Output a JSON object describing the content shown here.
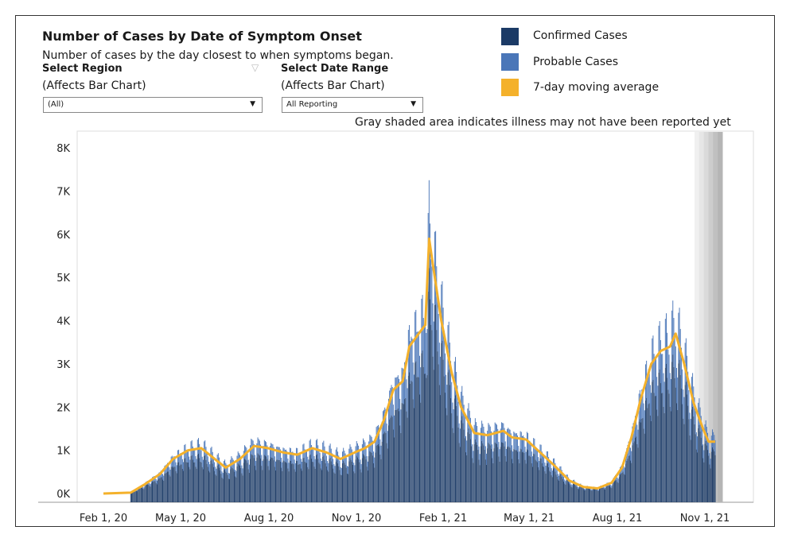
{
  "title": "Number of Cases by Date of Symptom Onset",
  "subtitle": "Number of cases by the day closest to when symptoms began.",
  "filters": {
    "region": {
      "label": "Select Region",
      "sublabel": "(Affects Bar Chart)",
      "value": "(All)"
    },
    "date_range": {
      "label": "Select Date Range",
      "sublabel": "(Affects Bar Chart)",
      "value": "All Reporting"
    }
  },
  "legend": [
    {
      "label": "Confirmed Cases",
      "color": "#1b3a66"
    },
    {
      "label": "Probable Cases",
      "color": "#4a76b8"
    },
    {
      "label": "7-day moving average",
      "color": "#f4b12b"
    }
  ],
  "note": "Gray shaded area indicates illness may not have been reported yet",
  "chart_data": {
    "type": "bar",
    "x_ticks": [
      "Feb 1, 20",
      "May 1, 20",
      "Aug 1, 20",
      "Nov 1, 20",
      "Feb 1, 21",
      "May 1, 21",
      "Aug 1, 21",
      "Nov 1, 21"
    ],
    "y_ticks": [
      "0K",
      "1K",
      "2K",
      "3K",
      "4K",
      "5K",
      "6K",
      "7K",
      "8K"
    ],
    "ylim": [
      0,
      8200
    ],
    "x_range": [
      "2020-01-15",
      "2021-11-15"
    ],
    "shaded_region_start": "2021-10-21",
    "series": [
      {
        "name": "Confirmed Cases",
        "color": "#1b3a66"
      },
      {
        "name": "Probable Cases",
        "color": "#4a76b8"
      },
      {
        "name": "7-day moving average",
        "color": "#f4b12b",
        "points": [
          [
            "2020-02-01",
            0
          ],
          [
            "2020-03-01",
            20
          ],
          [
            "2020-03-15",
            200
          ],
          [
            "2020-04-01",
            450
          ],
          [
            "2020-04-15",
            800
          ],
          [
            "2020-05-01",
            1000
          ],
          [
            "2020-05-15",
            1050
          ],
          [
            "2020-06-01",
            750
          ],
          [
            "2020-06-10",
            600
          ],
          [
            "2020-06-25",
            800
          ],
          [
            "2020-07-10",
            1100
          ],
          [
            "2020-07-25",
            1050
          ],
          [
            "2020-08-10",
            950
          ],
          [
            "2020-08-25",
            900
          ],
          [
            "2020-09-10",
            1050
          ],
          [
            "2020-09-25",
            950
          ],
          [
            "2020-10-10",
            800
          ],
          [
            "2020-10-25",
            950
          ],
          [
            "2020-11-05",
            1050
          ],
          [
            "2020-11-15",
            1200
          ],
          [
            "2020-11-25",
            1700
          ],
          [
            "2020-12-05",
            2400
          ],
          [
            "2020-12-15",
            2600
          ],
          [
            "2020-12-22",
            3400
          ],
          [
            "2021-01-01",
            3700
          ],
          [
            "2021-01-08",
            3900
          ],
          [
            "2021-01-12",
            5900
          ],
          [
            "2021-01-16",
            5300
          ],
          [
            "2021-01-25",
            4000
          ],
          [
            "2021-02-05",
            2800
          ],
          [
            "2021-02-15",
            2000
          ],
          [
            "2021-03-01",
            1400
          ],
          [
            "2021-03-15",
            1350
          ],
          [
            "2021-04-01",
            1450
          ],
          [
            "2021-04-10",
            1300
          ],
          [
            "2021-04-25",
            1250
          ],
          [
            "2021-05-10",
            950
          ],
          [
            "2021-05-25",
            650
          ],
          [
            "2021-06-10",
            300
          ],
          [
            "2021-06-25",
            150
          ],
          [
            "2021-07-10",
            120
          ],
          [
            "2021-07-25",
            250
          ],
          [
            "2021-08-05",
            600
          ],
          [
            "2021-08-15",
            1300
          ],
          [
            "2021-08-25",
            2200
          ],
          [
            "2021-09-05",
            3000
          ],
          [
            "2021-09-15",
            3300
          ],
          [
            "2021-09-25",
            3400
          ],
          [
            "2021-10-01",
            3700
          ],
          [
            "2021-10-10",
            3000
          ],
          [
            "2021-10-20",
            2100
          ],
          [
            "2021-10-30",
            1500
          ],
          [
            "2021-11-05",
            1200
          ],
          [
            "2021-11-12",
            1200
          ]
        ]
      }
    ]
  }
}
